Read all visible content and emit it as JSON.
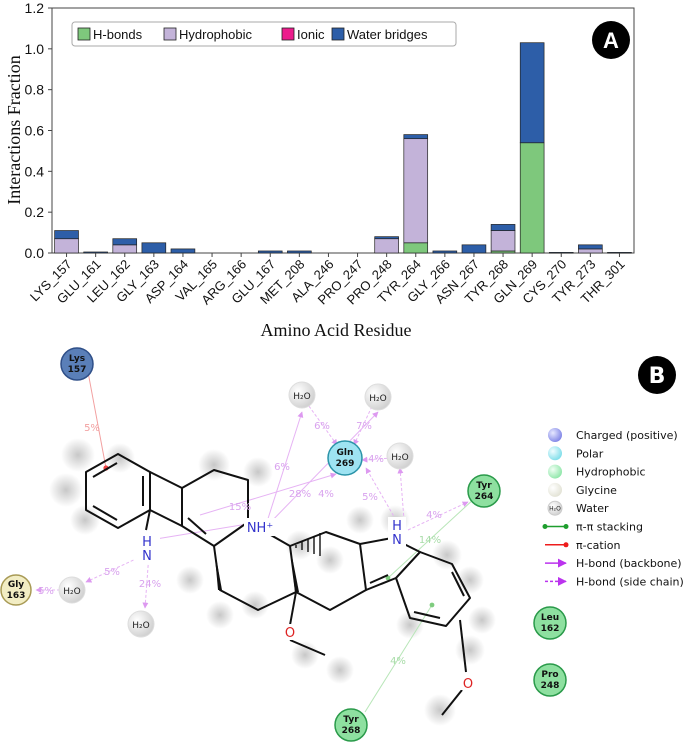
{
  "panels": {
    "a": {
      "letter": "A"
    },
    "b": {
      "letter": "B"
    }
  },
  "chart_data": {
    "type": "bar",
    "stacked": true,
    "title": "",
    "xlabel": "Amino Acid Residue",
    "ylabel": "Interactions Fraction",
    "ylim": [
      0,
      1.2
    ],
    "yticks": [
      "0.0",
      "0.2",
      "0.4",
      "0.6",
      "0.8",
      "1.0",
      "1.2"
    ],
    "grid": false,
    "legend_position": "top",
    "categories": [
      "LYS_157",
      "GLU_161",
      "LEU_162",
      "GLY_163",
      "ASP_164",
      "VAL_165",
      "ARG_166",
      "GLU_167",
      "MET_208",
      "ALA_246",
      "PRO_247",
      "PRO_248",
      "TYR_264",
      "GLY_266",
      "ASN_267",
      "TYR_268",
      "GLN_269",
      "CYS_270",
      "TYR_273",
      "THR_301"
    ],
    "series": [
      {
        "name": "H-bonds",
        "color": "#7ec87c",
        "values": [
          0,
          0,
          0,
          0,
          0,
          0,
          0,
          0,
          0,
          0,
          0,
          0,
          0.05,
          0,
          0,
          0.01,
          0.54,
          0,
          0,
          0
        ]
      },
      {
        "name": "Hydrophobic",
        "color": "#c3b3d9",
        "values": [
          0.07,
          0,
          0.04,
          0,
          0,
          0,
          0,
          0,
          0,
          0,
          0,
          0.07,
          0.51,
          0,
          0,
          0.1,
          0,
          0,
          0.02,
          0
        ]
      },
      {
        "name": "Ionic",
        "color": "#ec1c8c",
        "values": [
          0,
          0,
          0,
          0,
          0,
          0,
          0,
          0,
          0,
          0,
          0,
          0,
          0,
          0,
          0,
          0,
          0,
          0,
          0,
          0
        ]
      },
      {
        "name": "Water bridges",
        "color": "#2d5ea8",
        "values": [
          0.04,
          0.005,
          0.03,
          0.05,
          0.02,
          0,
          0,
          0.01,
          0.01,
          0,
          0,
          0.01,
          0.02,
          0.01,
          0.04,
          0.03,
          0.49,
          0.003,
          0.02,
          0.003
        ]
      }
    ]
  },
  "interaction_diagram": {
    "residues": [
      {
        "name": "Lys",
        "num": "157",
        "kind": "charged",
        "fill": "#5a7fb8"
      },
      {
        "name": "Gln",
        "num": "269",
        "kind": "polar",
        "fill": "#9ee3f2"
      },
      {
        "name": "Tyr",
        "num": "264",
        "kind": "hydrophobic",
        "fill": "#8ee0a0"
      },
      {
        "name": "Gly",
        "num": "163",
        "kind": "glycine",
        "fill": "#f2edc4"
      },
      {
        "name": "Leu",
        "num": "162",
        "kind": "hydrophobic",
        "fill": "#8ee0a0"
      },
      {
        "name": "Pro",
        "num": "248",
        "kind": "hydrophobic",
        "fill": "#8ee0a0"
      },
      {
        "name": "Tyr",
        "num": "268",
        "kind": "hydrophobic",
        "fill": "#8ee0a0"
      }
    ],
    "water_label": "H₂O",
    "atom_labels": {
      "nh_plus": "NH⁺",
      "n": "N",
      "h": "H",
      "o": "O"
    },
    "percent_labels": [
      "5%",
      "6%",
      "7%",
      "6%",
      "4%",
      "15%",
      "28%",
      "4%",
      "5%",
      "4%",
      "14%",
      "5%",
      "24%",
      "4%",
      "5%"
    ],
    "legend": [
      {
        "label": "Charged (positive)",
        "kind": "circle",
        "color": "#8a8ff0"
      },
      {
        "label": "Polar",
        "kind": "circle",
        "color": "#8fe6f0"
      },
      {
        "label": "Hydrophobic",
        "kind": "circle",
        "color": "#a6efc0"
      },
      {
        "label": "Glycine",
        "kind": "circle",
        "color": "#f0f0e4"
      },
      {
        "label": "Water",
        "kind": "water"
      },
      {
        "label": "π-π stacking",
        "kind": "line-dots",
        "color": "#1e9e2e"
      },
      {
        "label": "π-cation",
        "kind": "line-dot",
        "color": "#ee1c1c"
      },
      {
        "label": "H-bond (backbone)",
        "kind": "arrow-solid",
        "color": "#bb33ee"
      },
      {
        "label": "H-bond (side chain)",
        "kind": "arrow-dashed",
        "color": "#bb33ee"
      }
    ]
  }
}
